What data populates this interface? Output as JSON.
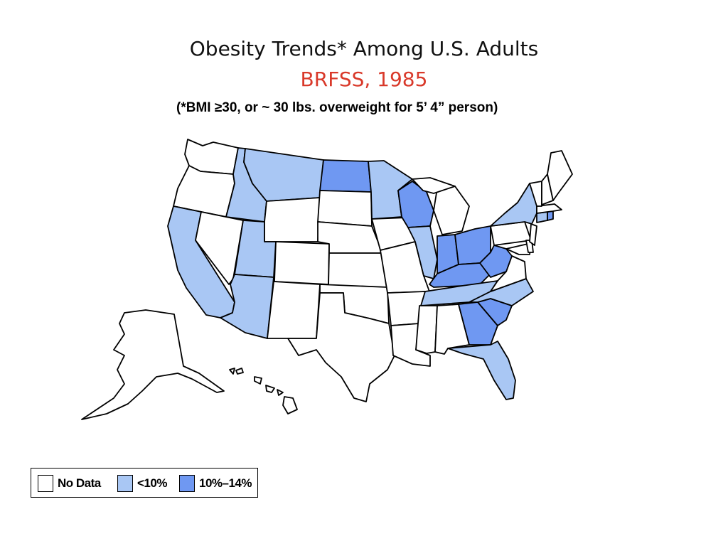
{
  "title": "Obesity Trends* Among U.S. Adults",
  "subtitle": "BRFSS, 1985",
  "note": "(*BMI ≥30, or ~ 30 lbs. overweight for 5’ 4” person)",
  "legend": {
    "items": [
      {
        "label": "No Data",
        "color": "#ffffff"
      },
      {
        "label": "<10%",
        "color": "#a9c7f4"
      },
      {
        "label": "10%–14%",
        "color": "#6f98f2"
      }
    ]
  },
  "map": {
    "categories": {
      "no_data": "No Data",
      "low": "<10%",
      "mid": "10%–14%"
    },
    "states": {
      "WA": "no_data",
      "OR": "no_data",
      "CA": "low",
      "NV": "no_data",
      "ID": "low",
      "MT": "low",
      "WY": "no_data",
      "UT": "low",
      "AZ": "low",
      "CO": "no_data",
      "NM": "no_data",
      "ND": "mid",
      "SD": "no_data",
      "NE": "no_data",
      "KS": "no_data",
      "OK": "no_data",
      "TX": "no_data",
      "MN": "low",
      "IA": "no_data",
      "MO": "no_data",
      "AR": "no_data",
      "LA": "no_data",
      "WI": "mid",
      "IL": "low",
      "MI": "no_data",
      "IN": "mid",
      "OH": "mid",
      "KY": "mid",
      "TN": "low",
      "MS": "no_data",
      "AL": "no_data",
      "GA": "mid",
      "FL": "low",
      "SC": "mid",
      "NC": "low",
      "VA": "no_data",
      "WV": "mid",
      "PA": "no_data",
      "NY": "low",
      "NJ": "no_data",
      "DE": "no_data",
      "MD": "no_data",
      "CT": "low",
      "RI": "mid",
      "MA": "no_data",
      "VT": "no_data",
      "NH": "no_data",
      "ME": "no_data",
      "AK": "no_data",
      "HI": "no_data"
    }
  }
}
